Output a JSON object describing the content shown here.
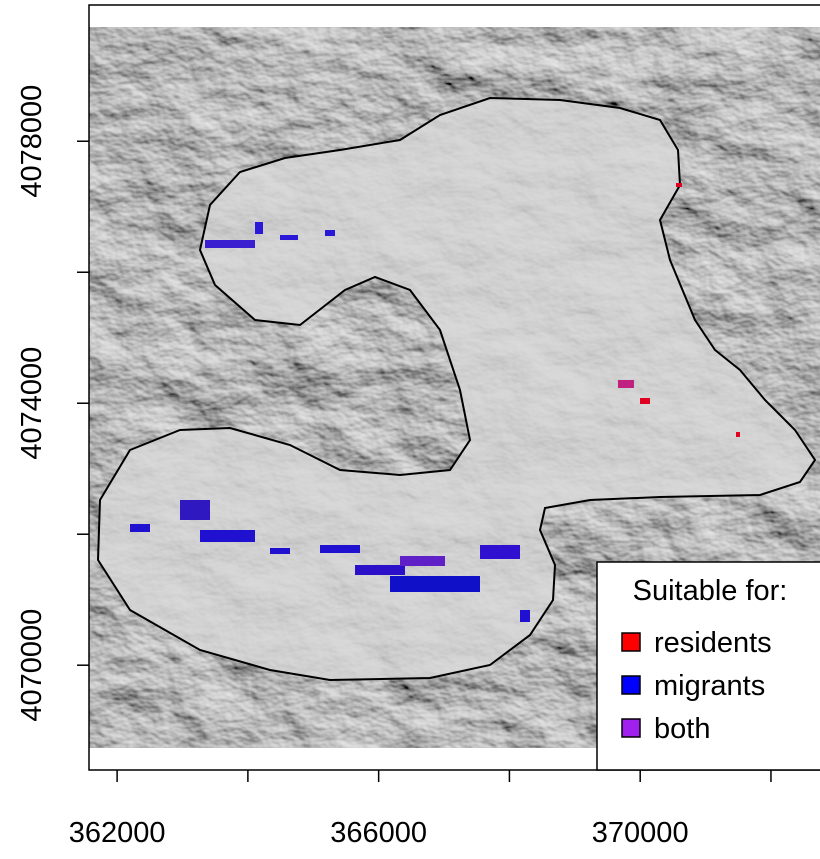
{
  "chart_data": {
    "type": "map",
    "xlim": [
      361570,
      372750
    ],
    "ylim": [
      4068400,
      4080080
    ],
    "xticks": [
      362000,
      {
        "value": 364000,
        "label": null
      },
      366000,
      {
        "value": 368000,
        "label": null
      },
      370000,
      {
        "value": 372000,
        "label": null
      }
    ],
    "yticks": [
      {
        "value": 4070000,
        "label": "4070000"
      },
      {
        "value": 4072000,
        "label": null
      },
      {
        "value": 4074000,
        "label": "4074000"
      },
      {
        "value": 4076000,
        "label": null
      },
      {
        "value": 4078000,
        "label": "4078000"
      }
    ],
    "legend": {
      "title": "Suitable for:",
      "position": "bottom-right",
      "items": [
        {
          "name": "residents",
          "color": "#ff0000"
        },
        {
          "name": "migrants",
          "color": "#0000ff"
        },
        {
          "name": "both",
          "color": "#a020f0"
        }
      ]
    }
  }
}
